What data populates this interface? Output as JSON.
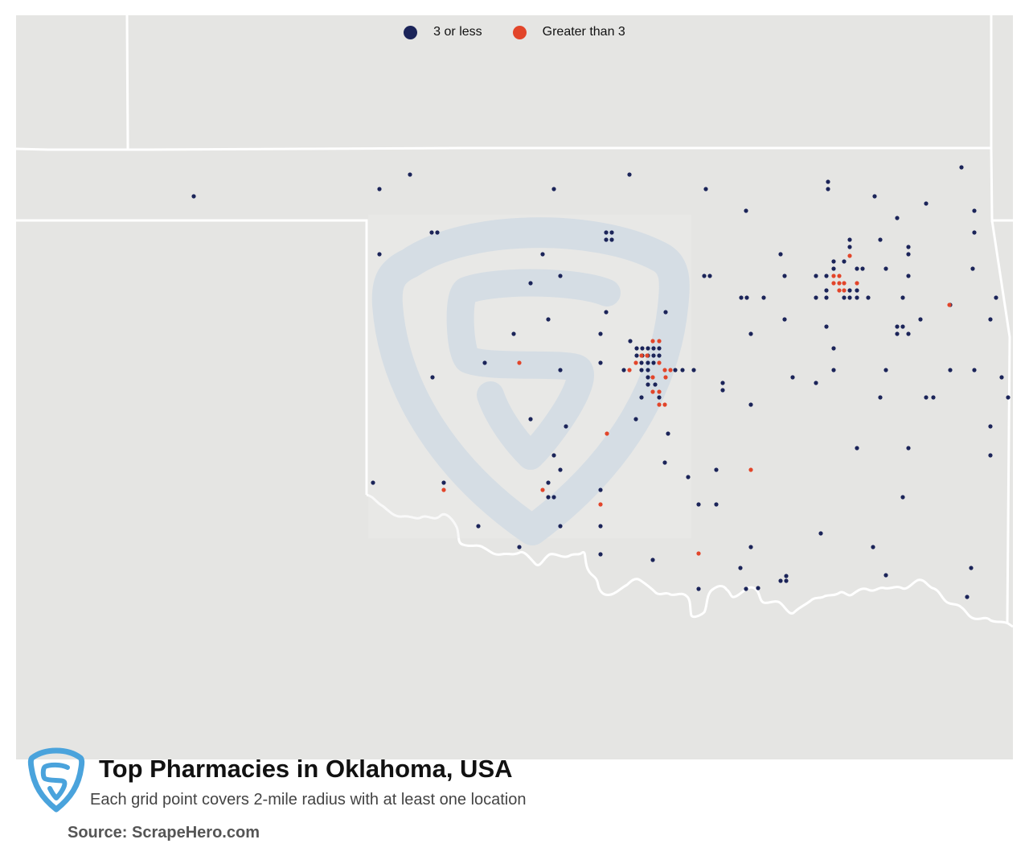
{
  "legend": {
    "low_label": "3 or less",
    "high_label": "Greater than 3"
  },
  "colors": {
    "low": "#1b2459",
    "high": "#e2452a",
    "land": "#e5e5e3",
    "border": "#ffffff",
    "watermark": "#c9d8e6"
  },
  "footer": {
    "title": "Top Pharmacies in Oklahoma, USA",
    "subtitle": "Each grid point covers 2-mile radius with at least one location",
    "source": "Source: ScrapeHero.com",
    "logo_icon": "scrapehero-shield-logo"
  },
  "map": {
    "region": "Oklahoma, USA",
    "watermark_icon": "scrapehero-shield-watermark",
    "locations_low": [
      [
        36.89,
        -102.5
      ],
      [
        36.92,
        -100.94
      ],
      [
        36.99,
        -100.55
      ],
      [
        36.92,
        -98.82
      ],
      [
        36.99,
        -97.84
      ],
      [
        36.92,
        -96.85
      ],
      [
        36.85,
        -95.85
      ],
      [
        36.95,
        -95.3
      ],
      [
        36.88,
        -94.62
      ],
      [
        36.99,
        -94.57
      ],
      [
        36.88,
        -94.62
      ],
      [
        36.96,
        -95.3
      ],
      [
        36.93,
        -95.3
      ],
      [
        36.92,
        -94.92
      ],
      [
        36.81,
        -94.78
      ],
      [
        36.76,
        -95.08
      ],
      [
        36.71,
        -94.62
      ],
      [
        36.74,
        -100.34
      ],
      [
        36.74,
        -100.29
      ],
      [
        36.71,
        -100.94
      ],
      [
        36.74,
        -99.01
      ],
      [
        36.71,
        -99.01
      ],
      [
        36.74,
        -98.97
      ],
      [
        36.71,
        -98.97
      ]
    ],
    "locations_high_count_note": ""
  }
}
